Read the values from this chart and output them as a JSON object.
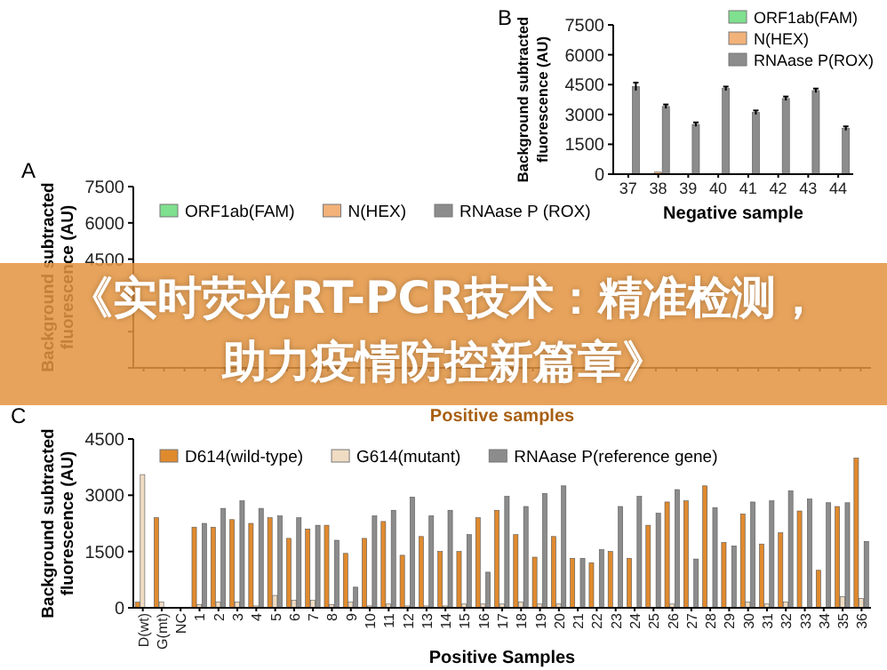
{
  "chart_data": [
    {
      "type": "bar",
      "title": "A",
      "ylabel": "Background subtracted fluorescence (AU)",
      "xlabel": "Positive samples",
      "ylim": [
        0,
        7500
      ],
      "yticks": [
        {
          "value": 0,
          "label": null
        },
        {
          "value": 1500,
          "label": null
        },
        {
          "value": 3000,
          "label": null
        },
        4500,
        6000,
        7500
      ],
      "legend": "top",
      "grid": false,
      "categories": [
        null,
        null,
        null,
        null,
        null,
        null,
        null,
        null,
        null,
        null,
        null,
        null,
        null,
        null,
        null,
        null,
        null,
        null,
        null,
        null,
        null,
        null,
        null,
        null,
        null,
        null,
        null,
        null,
        null,
        null,
        null,
        null,
        null,
        null,
        null,
        null
      ],
      "series": [
        {
          "name": "ORF1ab(FAM)",
          "color": "#7fe08f",
          "values": [
            null,
            null,
            null,
            null,
            null,
            null,
            null,
            null,
            null,
            null,
            null,
            null,
            null,
            null,
            null,
            null,
            null,
            null,
            null,
            null,
            null,
            null,
            null,
            null,
            null,
            null,
            null,
            null,
            null,
            null,
            null,
            null,
            null,
            null,
            null,
            null
          ]
        },
        {
          "name": "N(HEX)",
          "color": "#f2b27a",
          "values": [
            null,
            null,
            null,
            null,
            null,
            null,
            null,
            null,
            null,
            null,
            null,
            null,
            null,
            null,
            null,
            null,
            null,
            null,
            null,
            null,
            null,
            null,
            null,
            null,
            null,
            null,
            null,
            null,
            null,
            null,
            null,
            null,
            null,
            null,
            null,
            null
          ]
        },
        {
          "name": "RNAase P (ROX)",
          "color": "#8c8c8c",
          "values": [
            null,
            null,
            null,
            null,
            null,
            null,
            null,
            null,
            null,
            null,
            null,
            null,
            null,
            null,
            null,
            null,
            null,
            null,
            null,
            null,
            null,
            null,
            null,
            null,
            null,
            null,
            null,
            null,
            null,
            null,
            null,
            null,
            null,
            null,
            null,
            null
          ]
        }
      ],
      "annotations": [
        "《实时荧光RT-PCR技术：精准检测，助力疫情防控新篇章》"
      ]
    },
    {
      "type": "bar",
      "title": "B",
      "ylabel": "Background subtracted fluorescence (AU)",
      "xlabel": "Negative sample",
      "ylim": [
        0,
        7500
      ],
      "yticks": [
        0,
        1500,
        3000,
        4500,
        6000,
        7500
      ],
      "legend": "top right",
      "grid": false,
      "categories": [
        "37",
        "38",
        "39",
        "40",
        "41",
        "42",
        "43",
        "44"
      ],
      "series": [
        {
          "name": "ORF1ab(FAM)",
          "color": "#7fe08f",
          "values": [
            0,
            0,
            0,
            0,
            0,
            0,
            0,
            0
          ]
        },
        {
          "name": "N(HEX)",
          "color": "#f2b27a",
          "values": [
            0,
            100,
            0,
            0,
            0,
            0,
            0,
            0
          ]
        },
        {
          "name": "RNAase P(ROX)",
          "color": "#8c8c8c",
          "values": [
            4400,
            3400,
            2500,
            4300,
            3100,
            3800,
            4200,
            2300
          ],
          "errors": [
            200,
            100,
            100,
            100,
            100,
            100,
            100,
            100
          ]
        }
      ]
    },
    {
      "type": "bar",
      "title": "C",
      "ylabel": "Background subtracted fluorescence (AU)",
      "xlabel": "Positive Samples",
      "ylim": [
        0,
        4500
      ],
      "yticks": [
        0,
        1500,
        3000,
        4500
      ],
      "legend": "top",
      "grid": false,
      "categories": [
        "D(wt)",
        "G(mt)",
        "NC",
        "1",
        "2",
        "3",
        "4",
        "5",
        "6",
        "7",
        "8",
        "9",
        "10",
        "11",
        "12",
        "13",
        "14",
        "15",
        "16",
        "17",
        "18",
        "19",
        "20",
        "21",
        "22",
        "23",
        "24",
        "25",
        "26",
        "27",
        "28",
        "29",
        "30",
        "31",
        "32",
        "33",
        "34",
        "35",
        "36"
      ],
      "series": [
        {
          "name": "D614(wild-type)",
          "color": "#e08a2e",
          "values": [
            150,
            2400,
            0,
            2150,
            2150,
            2350,
            2250,
            2400,
            1850,
            2100,
            2200,
            1450,
            1850,
            2300,
            1400,
            1900,
            1500,
            1500,
            2400,
            2600,
            1950,
            1350,
            1900,
            1320,
            1200,
            1500,
            1320,
            2200,
            2820,
            2850,
            3250,
            1740,
            2500,
            1700,
            2000,
            2580,
            1000,
            2700,
            3990
          ]
        },
        {
          "name": "G614(mutant)",
          "color": "#f0dcc3",
          "values": [
            3550,
            150,
            0,
            80,
            150,
            150,
            50,
            330,
            200,
            200,
            80,
            150,
            50,
            100,
            50,
            50,
            50,
            100,
            100,
            100,
            150,
            100,
            100,
            0,
            0,
            0,
            0,
            0,
            100,
            0,
            0,
            0,
            150,
            100,
            150,
            0,
            0,
            300,
            250
          ]
        },
        {
          "name": "RNAase P(reference gene)",
          "color": "#8c8c8c",
          "values": [
            0,
            0,
            0,
            2250,
            2650,
            2850,
            2650,
            2450,
            2400,
            2200,
            1800,
            550,
            2450,
            2600,
            2950,
            2450,
            2600,
            1950,
            950,
            2970,
            2700,
            3050,
            3250,
            1320,
            1550,
            2700,
            2970,
            2520,
            3150,
            1300,
            2670,
            1650,
            2820,
            2850,
            3120,
            2900,
            2800,
            2800,
            1770
          ]
        }
      ]
    }
  ]
}
